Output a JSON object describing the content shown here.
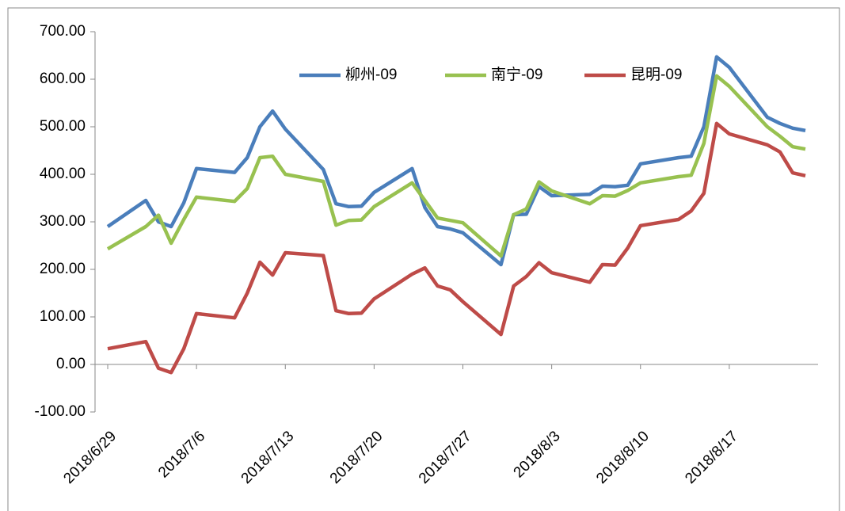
{
  "chart_data": {
    "type": "line",
    "x": [
      "2018/6/29",
      "2018/7/2",
      "2018/7/3",
      "2018/7/4",
      "2018/7/5",
      "2018/7/6",
      "2018/7/9",
      "2018/7/10",
      "2018/7/11",
      "2018/7/12",
      "2018/7/13",
      "2018/7/16",
      "2018/7/17",
      "2018/7/18",
      "2018/7/19",
      "2018/7/20",
      "2018/7/23",
      "2018/7/24",
      "2018/7/25",
      "2018/7/26",
      "2018/7/27",
      "2018/7/30",
      "2018/7/31",
      "2018/8/1",
      "2018/8/2",
      "2018/8/3",
      "2018/8/6",
      "2018/8/7",
      "2018/8/8",
      "2018/8/9",
      "2018/8/10",
      "2018/8/13",
      "2018/8/14",
      "2018/8/15",
      "2018/8/16",
      "2018/8/17",
      "2018/8/20",
      "2018/8/21",
      "2018/8/22",
      "2018/8/23"
    ],
    "series": [
      {
        "name": "柳州-09",
        "color": "#4a7ebb",
        "values": [
          290,
          345,
          300,
          290,
          340,
          412,
          404,
          435,
          500,
          533,
          495,
          410,
          338,
          332,
          333,
          362,
          412,
          330,
          290,
          285,
          277,
          210,
          315,
          316,
          374,
          355,
          358,
          375,
          374,
          377,
          422,
          435,
          438,
          500,
          647,
          625,
          520,
          507,
          497,
          492
        ]
      },
      {
        "name": "南宁-09",
        "color": "#98c150",
        "values": [
          243,
          290,
          314,
          255,
          305,
          352,
          343,
          370,
          435,
          438,
          400,
          385,
          293,
          303,
          304,
          332,
          382,
          345,
          308,
          303,
          298,
          228,
          315,
          327,
          384,
          365,
          338,
          355,
          354,
          366,
          382,
          395,
          398,
          465,
          607,
          585,
          500,
          480,
          458,
          453
        ]
      },
      {
        "name": "昆明-09",
        "color": "#be4b48",
        "values": [
          33,
          48,
          -8,
          -17,
          33,
          107,
          98,
          150,
          215,
          188,
          235,
          229,
          113,
          107,
          108,
          138,
          190,
          203,
          165,
          157,
          132,
          63,
          165,
          185,
          214,
          193,
          173,
          210,
          209,
          245,
          292,
          305,
          323,
          360,
          507,
          485,
          462,
          447,
          403,
          397
        ]
      }
    ],
    "xlim": [
      "2018/6/28",
      "2018/8/24"
    ],
    "xticks": [
      "2018/6/29",
      "2018/7/6",
      "2018/7/13",
      "2018/7/20",
      "2018/7/27",
      "2018/8/3",
      "2018/8/10",
      "2018/8/17"
    ],
    "ylim": [
      -100,
      700
    ],
    "yticks": [
      {
        "value": -100,
        "label": "-100.00"
      },
      {
        "value": 0,
        "label": "0.00"
      },
      {
        "value": 100,
        "label": "100.00"
      },
      {
        "value": 200,
        "label": "200.00"
      },
      {
        "value": 300,
        "label": "300.00"
      },
      {
        "value": 400,
        "label": "400.00"
      },
      {
        "value": 500,
        "label": "500.00"
      },
      {
        "value": 600,
        "label": "600.00"
      },
      {
        "value": 700,
        "label": "700.00"
      }
    ],
    "grid": false,
    "legend": "top"
  }
}
